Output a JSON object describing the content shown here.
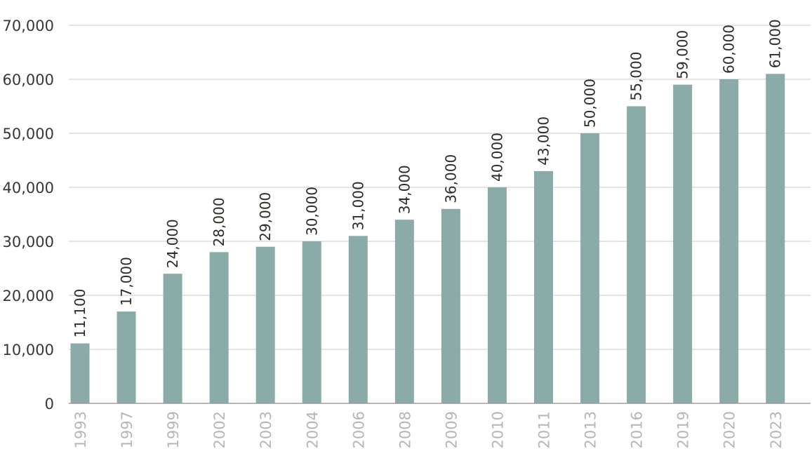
{
  "chart_data": {
    "type": "bar",
    "title": "",
    "xlabel": "",
    "ylabel": "",
    "categories": [
      "1993",
      "1997",
      "1999",
      "2002",
      "2003",
      "2004",
      "2006",
      "2008",
      "2009",
      "2010",
      "2011",
      "2013",
      "2016",
      "2019",
      "2020",
      "2023"
    ],
    "values": [
      11100,
      17000,
      24000,
      28000,
      29000,
      30000,
      31000,
      34000,
      36000,
      40000,
      43000,
      50000,
      55000,
      59000,
      60000,
      61000
    ],
    "value_labels": [
      "11,100",
      "17,000",
      "24,000",
      "28,000",
      "29,000",
      "30,000",
      "31,000",
      "34,000",
      "36,000",
      "40,000",
      "43,000",
      "50,000",
      "55,000",
      "59,000",
      "60,000",
      "61,000"
    ],
    "ylim": [
      0,
      70000
    ],
    "yticks": [
      0,
      10000,
      20000,
      30000,
      40000,
      50000,
      60000,
      70000
    ],
    "ytick_labels": [
      "0",
      "10,000",
      "20,000",
      "30,000",
      "40,000",
      "50,000",
      "60,000",
      "70,000"
    ],
    "grid": true,
    "legend": "none",
    "bar_color": "#8aaba7"
  }
}
